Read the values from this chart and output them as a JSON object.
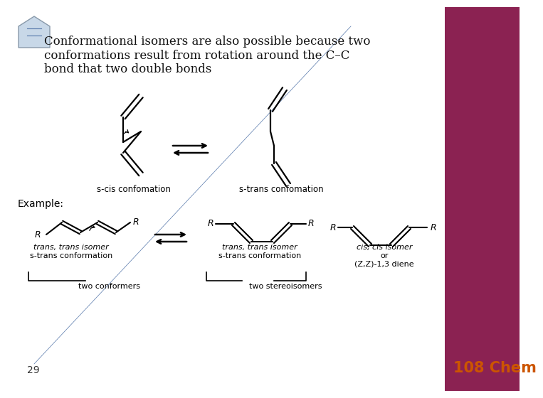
{
  "bg_color": "#ffffff",
  "right_panel_color": "#8B2252",
  "title_text": "Conformational isomers are also possible because two\nconformations result from rotation around the C–C\nbond that two double bonds",
  "title_fontsize": 12,
  "page_number": "29",
  "brand_text": "108 Chem",
  "brand_color": "#cc5500",
  "s_cis_label": "s-cis confomation",
  "s_trans_label": "s-trans confomation",
  "example_label": "Example:",
  "label1a": "trans, trans isomer",
  "label1b": "s-trans conformation",
  "label2a": "trans, trans isomer",
  "label2b": "s-trans conformation",
  "label3a": "cis, cis isomer",
  "label3b": "or",
  "label3c": "(Z,Z)-1,3 diene",
  "conformers_label": "two conformers",
  "stereoisomers_label": "two stereoisomers"
}
